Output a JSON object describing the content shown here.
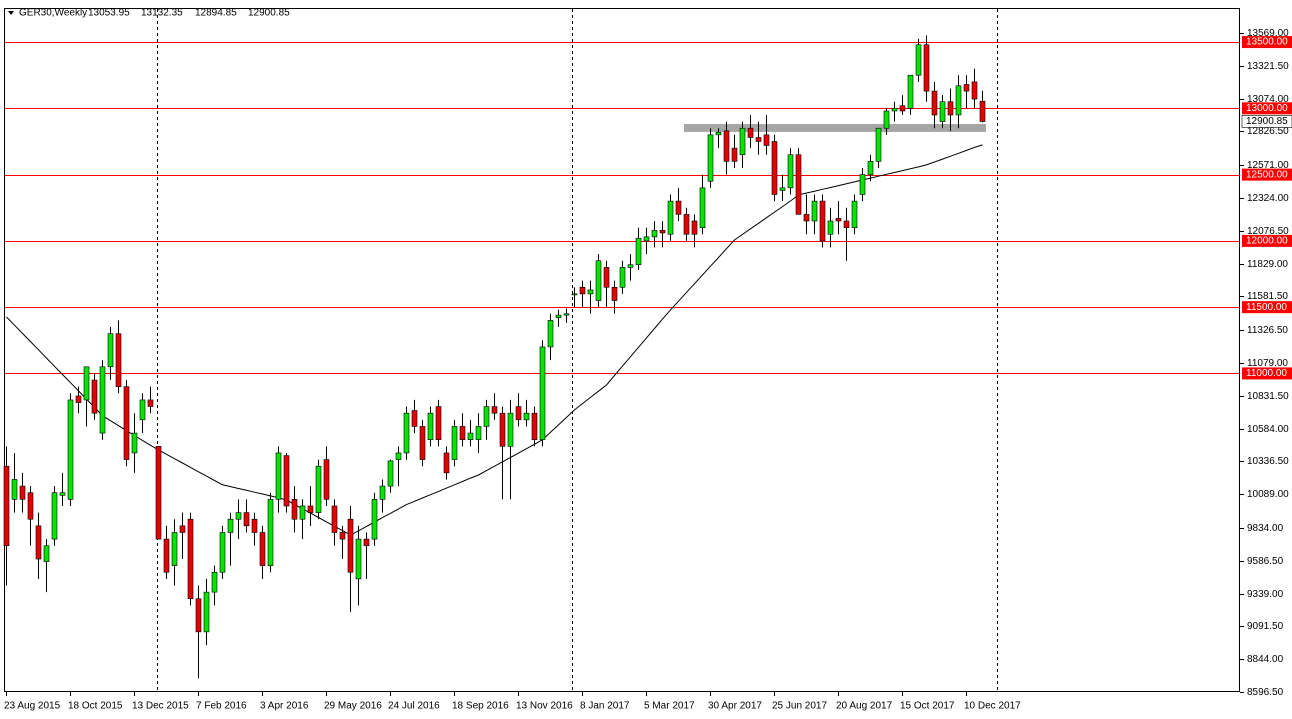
{
  "chart_data": {
    "type": "candlestick",
    "title": "GER30,Weekly",
    "categories": [
      "23 Aug 2015",
      null,
      null,
      null,
      null,
      null,
      null,
      null,
      "18 Oct 2015",
      null,
      null,
      null,
      null,
      null,
      null,
      null,
      "13 Dec 2015",
      null,
      null,
      null,
      null,
      null,
      null,
      null,
      "7 Feb 2016",
      null,
      null,
      null,
      null,
      null,
      null,
      null,
      "3 Apr 2016",
      null,
      null,
      null,
      null,
      null,
      null,
      null,
      "29 May 2016",
      null,
      null,
      null,
      null,
      null,
      null,
      null,
      "24 Jul 2016",
      null,
      null,
      null,
      null,
      null,
      null,
      null,
      "18 Sep 2016",
      null,
      null,
      null,
      null,
      null,
      null,
      null,
      "13 Nov 2016",
      null,
      null,
      null,
      null,
      null,
      null,
      null,
      "8 Jan 2017",
      null,
      null,
      null,
      null,
      null,
      null,
      null,
      "5 Mar 2017",
      null,
      null,
      null,
      null,
      null,
      null,
      null,
      "30 Apr 2017",
      null,
      null,
      null,
      null,
      null,
      null,
      null,
      "25 Jun 2017",
      null,
      null,
      null,
      null,
      null,
      null,
      null,
      "20 Aug 2017",
      null,
      null,
      null,
      null,
      null,
      null,
      null,
      "15 Oct 2017",
      null,
      null,
      null,
      null,
      null,
      null,
      null,
      "10 Dec 2017",
      null,
      null
    ],
    "open": [
      10300,
      10050,
      10150,
      10100,
      9850,
      9580,
      9750,
      10080,
      10050,
      10830,
      10800,
      10950,
      10550,
      11050,
      11300,
      10900,
      10400,
      10650,
      10800,
      10450,
      9750,
      9550,
      9850,
      9900,
      9300,
      9050,
      9350,
      9500,
      9800,
      9900,
      9950,
      9900,
      9800,
      9550,
      10050,
      10380,
      10050,
      9900,
      10000,
      9950,
      10350,
      10000,
      9800,
      9900,
      9450,
      9750,
      9750,
      10050,
      10150,
      10350,
      10400,
      10720,
      10600,
      10500,
      10750,
      10400,
      10350,
      10600,
      10500,
      10500,
      10600,
      10750,
      10700,
      10450,
      10750,
      10650,
      10700,
      10500,
      11200,
      11420,
      11440,
      11600,
      11650,
      11600,
      11550,
      11800,
      11650,
      11650,
      11800,
      11820,
      12000,
      12030,
      12080,
      12050,
      12300,
      12200,
      12150,
      12100,
      12450,
      12800,
      12830,
      12700,
      12650,
      12850,
      12780,
      12800,
      12750,
      12380,
      12400,
      12650,
      12200,
      12150,
      12300,
      12050,
      12170,
      12150,
      12100,
      12350,
      12500,
      12600,
      12850,
      12980,
      13020,
      13000,
      13250,
      13480,
      13130,
      12900,
      13050,
      12950,
      13180,
      13200,
      13053.95
    ],
    "high": [
      10450,
      10400,
      10250,
      10150,
      9950,
      9750,
      10150,
      10250,
      10850,
      10900,
      11050,
      11000,
      11100,
      11350,
      11400,
      10950,
      10700,
      10850,
      10900,
      10450,
      9850,
      9900,
      9950,
      9950,
      9400,
      9450,
      9550,
      9850,
      9950,
      10050,
      10050,
      9950,
      9850,
      10100,
      10450,
      10400,
      10150,
      10050,
      10150,
      10350,
      10450,
      10050,
      9850,
      10000,
      9850,
      9800,
      10100,
      10200,
      10350,
      10450,
      10750,
      10800,
      10650,
      10750,
      10800,
      10450,
      10650,
      10700,
      10650,
      10700,
      10800,
      10850,
      10750,
      10800,
      10850,
      10800,
      10750,
      11250,
      11450,
      11480,
      11490,
      11650,
      11700,
      11700,
      11900,
      11850,
      11700,
      11850,
      11900,
      12100,
      12100,
      12150,
      12150,
      12350,
      12400,
      12250,
      12200,
      12500,
      12850,
      12850,
      12900,
      12800,
      12900,
      12950,
      12900,
      12950,
      12800,
      12500,
      12700,
      12700,
      12350,
      12350,
      12350,
      12250,
      12300,
      12250,
      12350,
      12550,
      12650,
      12850,
      13000,
      13050,
      13100,
      13250,
      13525,
      13550,
      13200,
      13100,
      13150,
      13250,
      13250,
      13300,
      13132.35
    ],
    "low": [
      9400,
      9950,
      9950,
      9700,
      9450,
      9350,
      9700,
      10000,
      10000,
      10700,
      10600,
      10650,
      10500,
      10950,
      10850,
      10300,
      10250,
      10550,
      10700,
      9750,
      9450,
      9400,
      9600,
      9250,
      8700,
      8950,
      9250,
      9450,
      9550,
      9750,
      9800,
      9700,
      9450,
      9500,
      9950,
      9950,
      9800,
      9750,
      9850,
      9900,
      10000,
      9700,
      9600,
      9200,
      9250,
      9450,
      9700,
      9950,
      10100,
      10150,
      10350,
      10550,
      10300,
      10450,
      10450,
      10200,
      10300,
      10450,
      10450,
      10400,
      10500,
      10650,
      10050,
      10050,
      10600,
      10600,
      10450,
      10450,
      11100,
      11350,
      11380,
      11500,
      11500,
      11450,
      11500,
      11500,
      11450,
      11600,
      11700,
      11780,
      11900,
      11950,
      11950,
      12000,
      12150,
      12000,
      11950,
      12050,
      12400,
      12700,
      12500,
      12550,
      12550,
      12700,
      12650,
      12650,
      12300,
      12300,
      12350,
      12200,
      12050,
      12050,
      11950,
      11950,
      12050,
      11850,
      12050,
      12300,
      12450,
      12550,
      12800,
      12900,
      12950,
      12950,
      13200,
      13050,
      12850,
      12850,
      12830,
      12850,
      13000,
      13000,
      12894.85
    ],
    "close": [
      9700,
      10200,
      10050,
      9900,
      9600,
      9700,
      10100,
      10100,
      10800,
      10780,
      11050,
      10700,
      11050,
      11300,
      10900,
      10350,
      10550,
      10800,
      10750,
      9750,
      9500,
      9800,
      9800,
      9300,
      9050,
      9350,
      9500,
      9800,
      9900,
      9950,
      9850,
      9800,
      9550,
      10050,
      10400,
      10000,
      9900,
      10000,
      9950,
      10300,
      10050,
      9800,
      9750,
      9500,
      9750,
      9700,
      10050,
      10150,
      10340,
      10400,
      10700,
      10600,
      10350,
      10700,
      10500,
      10250,
      10600,
      10500,
      10550,
      10600,
      10750,
      10700,
      10450,
      10700,
      10650,
      10700,
      10500,
      11200,
      11400,
      11440,
      11450,
      11600,
      11600,
      11630,
      11850,
      11650,
      11550,
      11800,
      11820,
      12020,
      12030,
      12080,
      12060,
      12300,
      12200,
      12050,
      12050,
      12400,
      12800,
      12820,
      12600,
      12600,
      12850,
      12780,
      12750,
      12720,
      12350,
      12400,
      12650,
      12200,
      12150,
      12300,
      12000,
      12150,
      12150,
      12100,
      12300,
      12500,
      12600,
      12850,
      12980,
      13000,
      12980,
      13250,
      13480,
      13130,
      12950,
      13050,
      12950,
      13170,
      13130,
      13070,
      12900.85
    ],
    "ma": [
      11426,
      11364,
      11302,
      11240,
      11178,
      11116,
      11054,
      10992,
      10930,
      10868,
      10806,
      10744,
      10680,
      10643,
      10606,
      10569,
      10532,
      10495,
      10458,
      10423,
      10390,
      10357,
      10324,
      10291,
      10258,
      10225,
      10192,
      10160,
      10146,
      10132,
      10118,
      10104,
      10090,
      10076,
      10062,
      10045,
      10012,
      9979,
      9946,
      9913,
      9880,
      9847,
      9814,
      9780,
      9813,
      9846,
      9879,
      9912,
      9945,
      9978,
      10010,
      10035,
      10060,
      10085,
      10110,
      10135,
      10160,
      10185,
      10210,
      10234,
      10267,
      10300,
      10333,
      10366,
      10399,
      10432,
      10465,
      10500,
      10556,
      10612,
      10668,
      10725,
      10772,
      10819,
      10866,
      10913,
      10984,
      11055,
      11126,
      11197,
      11268,
      11339,
      11410,
      11479,
      11545,
      11611,
      11677,
      11743,
      11809,
      11875,
      11941,
      12007,
      12049,
      12091,
      12133,
      12175,
      12217,
      12259,
      12301,
      12347,
      12361,
      12375,
      12389,
      12403,
      12417,
      12431,
      12445,
      12460,
      12474,
      12488,
      12502,
      12516,
      12530,
      12544,
      12558,
      12573,
      12595,
      12617,
      12639,
      12661,
      12683,
      12705,
      12724
    ],
    "up_color": "#00e600",
    "down_color": "#e60000",
    "ma_color": "#000000",
    "level_color": "#ff0000",
    "zone_color": "#a6a6a6",
    "levels": [
      {
        "value": 13500,
        "label": "13500.00"
      },
      {
        "value": 13000,
        "label": "13000.00"
      },
      {
        "value": 12500,
        "label": "12500.00"
      },
      {
        "value": 12000,
        "label": "12000.00"
      },
      {
        "value": 11500,
        "label": "11500.00"
      },
      {
        "value": 11000,
        "label": "11000.00"
      }
    ],
    "zone": {
      "low": 12822,
      "high": 12882,
      "from": 85,
      "to": 122
    },
    "ylim": [
      8596.5,
      13757
    ],
    "yticks": [
      {
        "value": 13569,
        "label": "13569.00"
      },
      {
        "value": 13321.5,
        "label": "13321.50"
      },
      {
        "value": 13074,
        "label": "13074.00"
      },
      {
        "value": 12826.5,
        "label": "12826.50"
      },
      {
        "value": 12571,
        "label": "12571.00"
      },
      {
        "value": 12324,
        "label": "12324.00"
      },
      {
        "value": 12076.5,
        "label": "12076.50"
      },
      {
        "value": 11829,
        "label": "11829.00"
      },
      {
        "value": 11581.5,
        "label": "11581.50"
      },
      {
        "value": 11326.5,
        "label": "11326.50"
      },
      {
        "value": 11079,
        "label": "11079.00"
      },
      {
        "value": 10831.5,
        "label": "10831.50"
      },
      {
        "value": 10584,
        "label": "10584.00"
      },
      {
        "value": 10336.5,
        "label": "10336.50"
      },
      {
        "value": 10089,
        "label": "10089.00"
      },
      {
        "value": 9834,
        "label": "9834.00"
      },
      {
        "value": 9586.5,
        "label": "9586.50"
      },
      {
        "value": 9339,
        "label": "9339.00"
      },
      {
        "value": 9091.5,
        "label": "9091.50"
      },
      {
        "value": 8844,
        "label": "8844.00"
      },
      {
        "value": 8596.5,
        "label": "8596.50"
      }
    ]
  }
}
